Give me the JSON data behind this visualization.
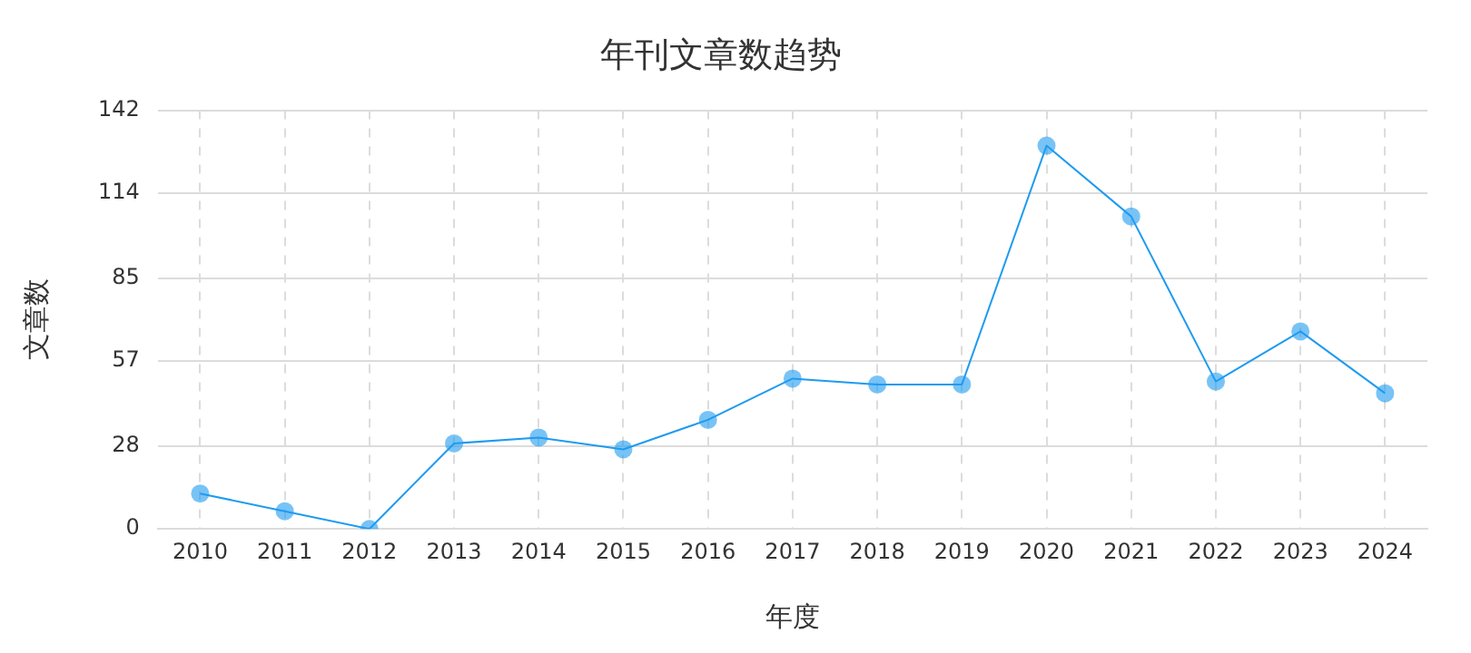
{
  "chart_data": {
    "type": "line",
    "title": "年刊文章数趋势",
    "xlabel": "年度",
    "ylabel": "文章数",
    "categories": [
      "2010",
      "2011",
      "2012",
      "2013",
      "2014",
      "2015",
      "2016",
      "2017",
      "2018",
      "2019",
      "2020",
      "2021",
      "2022",
      "2023",
      "2024"
    ],
    "series": [
      {
        "color": "#1e9bf0",
        "values": [
          12,
          6,
          0,
          29,
          31,
          27,
          37,
          51,
          49,
          49,
          130,
          106,
          50,
          67,
          46
        ]
      }
    ],
    "ylim": [
      0,
      142
    ],
    "yticks": [
      0,
      28,
      57,
      85,
      114,
      142
    ],
    "grid": true,
    "legend": false,
    "marker": "circle",
    "line_style": "solid"
  }
}
